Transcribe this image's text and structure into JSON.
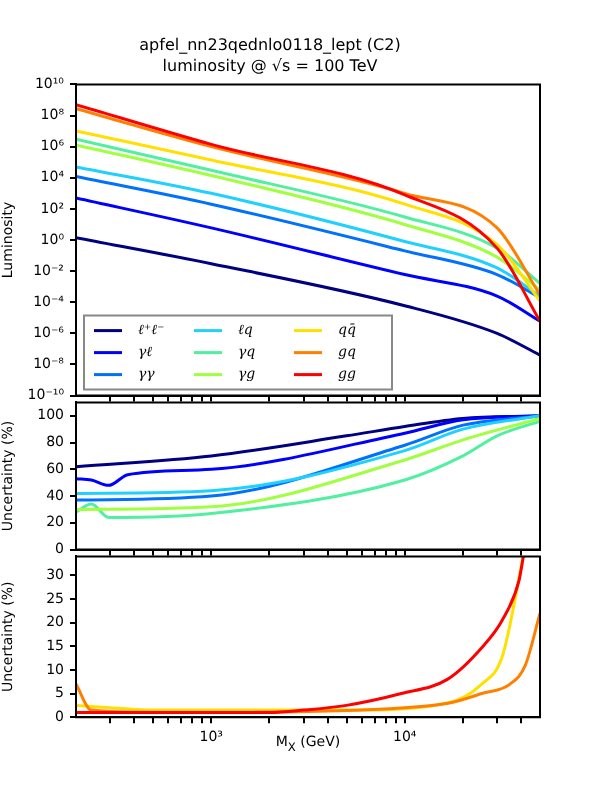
{
  "chart_data": [
    {
      "type": "line",
      "title": "apfel_nn23qednlo0118_lept (C2)",
      "subtitle": "luminosity @ √s = 100 TeV",
      "ylabel": "Luminosity",
      "log": "xy",
      "legend": "lower left",
      "tick_labels": "y",
      "x": [
        200,
        1000,
        10000,
        30000,
        50000
      ],
      "xlim": [
        200,
        50000
      ],
      "xticks": [
        {
          "value": 300,
          "label": null
        },
        {
          "value": 400,
          "label": null
        },
        {
          "value": 500,
          "label": null
        },
        {
          "value": 600,
          "label": null
        },
        {
          "value": 700,
          "label": null
        },
        {
          "value": 800,
          "label": null
        },
        {
          "value": 900,
          "label": null
        },
        {
          "value": 1000,
          "label": null
        },
        {
          "value": 2000,
          "label": null
        },
        {
          "value": 3000,
          "label": null
        },
        {
          "value": 4000,
          "label": null
        },
        {
          "value": 5000,
          "label": null
        },
        {
          "value": 6000,
          "label": null
        },
        {
          "value": 7000,
          "label": null
        },
        {
          "value": 8000,
          "label": null
        },
        {
          "value": 9000,
          "label": null
        },
        {
          "value": 10000,
          "label": null
        },
        {
          "value": 20000,
          "label": null
        },
        {
          "value": 30000,
          "label": null
        },
        {
          "value": 40000,
          "label": null
        }
      ],
      "ylim": [
        1e-10,
        10000000000.0
      ],
      "yticks": [
        {
          "value": 1e-10,
          "label": "10⁻¹⁰"
        },
        {
          "value": 1e-08,
          "label": "10⁻⁸"
        },
        {
          "value": 1e-06,
          "label": "10⁻⁶"
        },
        {
          "value": 0.0001,
          "label": "10⁻⁴"
        },
        {
          "value": 0.01,
          "label": "10⁻²"
        },
        {
          "value": 1,
          "label": "10⁰"
        },
        {
          "value": 100,
          "label": "10²"
        },
        {
          "value": 10000,
          "label": "10⁴"
        },
        {
          "value": 1000000,
          "label": "10⁶"
        },
        {
          "value": 100000000,
          "label": "10⁸"
        },
        {
          "value": 10000000000,
          "label": "10¹⁰"
        }
      ],
      "series": [
        {
          "name": "ℓ⁺ℓ⁻",
          "color": "#000080",
          "values": [
            1.4,
            0.03,
            6e-05,
            1e-06,
            4e-08
          ]
        },
        {
          "name": "γℓ",
          "color": "#0000ff",
          "values": [
            500,
            6,
            0.006,
            0.00025,
            6e-06
          ]
        },
        {
          "name": "γγ",
          "color": "#0070ff",
          "values": [
            12000,
            200,
            0.2,
            0.006,
            0.0002
          ]
        },
        {
          "name": "ℓq",
          "color": "#20d0ff",
          "values": [
            50000,
            1000,
            0.8,
            0.016,
            0.00025
          ]
        },
        {
          "name": "γq",
          "color": "#50f0a0",
          "values": [
            3000000,
            30000,
            30,
            0.3,
            0.0016
          ]
        },
        {
          "name": "γg",
          "color": "#a0ff40",
          "values": [
            1300000,
            14000,
            10,
            0.08,
            0.0006
          ]
        },
        {
          "name": "qq̄",
          "color": "#ffe000",
          "values": [
            10000000,
            140000,
            200,
            0.5,
            0.00012
          ]
        },
        {
          "name": "gq",
          "color": "#ff8000",
          "values": [
            270000000,
            1000000,
            1000,
            6,
            0.0003
          ]
        },
        {
          "name": "gg",
          "color": "#ff0000",
          "values": [
            500000000,
            1400000,
            800,
            0.3,
            6e-06
          ]
        }
      ]
    },
    {
      "type": "line",
      "ylabel": "Uncertainty (%)",
      "log": "x",
      "tick_labels": "y",
      "xlim": [
        200,
        50000
      ],
      "xticks": [
        {
          "value": 300,
          "label": null
        },
        {
          "value": 400,
          "label": null
        },
        {
          "value": 500,
          "label": null
        },
        {
          "value": 600,
          "label": null
        },
        {
          "value": 700,
          "label": null
        },
        {
          "value": 800,
          "label": null
        },
        {
          "value": 900,
          "label": null
        },
        {
          "value": 1000,
          "label": null
        },
        {
          "value": 2000,
          "label": null
        },
        {
          "value": 3000,
          "label": null
        },
        {
          "value": 4000,
          "label": null
        },
        {
          "value": 5000,
          "label": null
        },
        {
          "value": 6000,
          "label": null
        },
        {
          "value": 7000,
          "label": null
        },
        {
          "value": 8000,
          "label": null
        },
        {
          "value": 9000,
          "label": null
        },
        {
          "value": 10000,
          "label": null
        },
        {
          "value": 20000,
          "label": null
        },
        {
          "value": 30000,
          "label": null
        },
        {
          "value": 40000,
          "label": null
        }
      ],
      "ylim": [
        0,
        110
      ],
      "yticks": [
        0,
        20,
        40,
        60,
        80,
        100
      ],
      "series": [
        {
          "color": "#000080",
          "x": [
            200,
            1000,
            5000,
            10000,
            20000,
            50000
          ],
          "values": [
            62,
            70,
            85,
            92,
            98,
            100
          ]
        },
        {
          "color": "#0000ff",
          "x": [
            200,
            240,
            295,
            370,
            1000,
            10000,
            20000,
            50000
          ],
          "values": [
            53,
            52,
            48,
            56,
            60,
            87,
            97,
            100
          ]
        },
        {
          "color": "#0070ff",
          "x": [
            200,
            1000,
            10000,
            20000,
            50000
          ],
          "values": [
            37,
            40,
            78,
            93,
            100
          ]
        },
        {
          "color": "#20d0ff",
          "x": [
            200,
            1000,
            10000,
            20000,
            50000
          ],
          "values": [
            42,
            44,
            74,
            90,
            100
          ]
        },
        {
          "color": "#50f0a0",
          "x": [
            200,
            240,
            295,
            1000,
            10000,
            20000,
            30000,
            50000
          ],
          "values": [
            28,
            34,
            24,
            27,
            52,
            70,
            85,
            96
          ]
        },
        {
          "color": "#a0ff40",
          "x": [
            200,
            1000,
            10000,
            20000,
            50000
          ],
          "values": [
            30,
            32,
            67,
            82,
            98
          ]
        }
      ]
    },
    {
      "type": "line",
      "xlabel": "M$_{X}$ (GeV)",
      "ylabel": "Uncertainty (%)",
      "log": "x",
      "xlim": [
        200,
        50000
      ],
      "xticks": [
        {
          "value": 300,
          "label": null
        },
        {
          "value": 400,
          "label": null
        },
        {
          "value": 500,
          "label": null
        },
        {
          "value": 600,
          "label": null
        },
        {
          "value": 700,
          "label": null
        },
        {
          "value": 800,
          "label": null
        },
        {
          "value": 900,
          "label": null
        },
        {
          "value": 1000,
          "label": "10³"
        },
        {
          "value": 2000,
          "label": null
        },
        {
          "value": 3000,
          "label": null
        },
        {
          "value": 4000,
          "label": null
        },
        {
          "value": 5000,
          "label": null
        },
        {
          "value": 6000,
          "label": null
        },
        {
          "value": 7000,
          "label": null
        },
        {
          "value": 8000,
          "label": null
        },
        {
          "value": 9000,
          "label": null
        },
        {
          "value": 10000,
          "label": "10⁴"
        },
        {
          "value": 20000,
          "label": null
        },
        {
          "value": 30000,
          "label": null
        },
        {
          "value": 40000,
          "label": null
        }
      ],
      "ylim": [
        0,
        34
      ],
      "yticks": [
        0,
        5,
        10,
        15,
        20,
        25,
        30
      ],
      "series": [
        {
          "color": "#ffe000",
          "x": [
            200,
            300,
            500,
            1000,
            5000,
            16600,
            25000,
            32000,
            41000
          ],
          "values": [
            2.5,
            2,
            1.5,
            1.5,
            1.5,
            3,
            7,
            13,
            34
          ]
        },
        {
          "color": "#ff8000",
          "x": [
            200,
            240,
            500,
            1000,
            10000,
            17000,
            25000,
            35000,
            42000,
            50000
          ],
          "values": [
            7,
            1.5,
            1,
            1,
            2,
            3,
            5,
            7,
            11,
            22
          ]
        },
        {
          "color": "#ff0000",
          "x": [
            200,
            1000,
            2000,
            3000,
            5000,
            9600,
            16600,
            25000,
            32000,
            39000,
            41000
          ],
          "values": [
            1,
            1,
            1,
            1.5,
            2.5,
            5,
            8,
            14.7,
            20.6,
            29,
            34
          ]
        }
      ]
    }
  ]
}
